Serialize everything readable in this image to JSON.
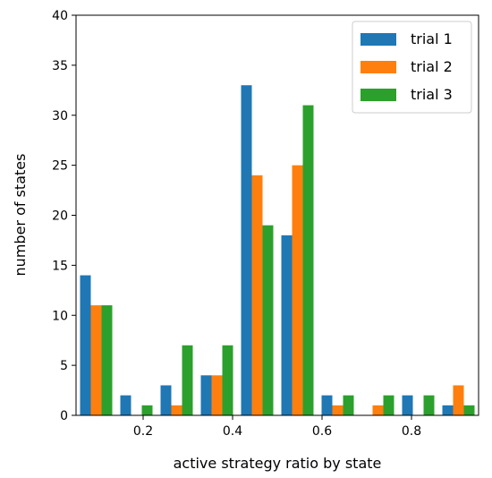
{
  "chart_data": {
    "type": "bar",
    "title": "",
    "xlabel": "active strategy ratio by state",
    "ylabel": "number of states",
    "xlim": [
      0.05,
      0.95
    ],
    "ylim": [
      0,
      40
    ],
    "xticks": [
      "0.2",
      "0.4",
      "0.6",
      "0.8"
    ],
    "xtick_values": [
      0.2,
      0.4,
      0.6,
      0.8
    ],
    "yticks": [
      "0",
      "5",
      "10",
      "15",
      "20",
      "25",
      "30",
      "35",
      "40"
    ],
    "ytick_values": [
      0,
      5,
      10,
      15,
      20,
      25,
      30,
      35,
      40
    ],
    "bins": [
      [
        0.05,
        0.14
      ],
      [
        0.14,
        0.23
      ],
      [
        0.23,
        0.32
      ],
      [
        0.32,
        0.41
      ],
      [
        0.41,
        0.5
      ],
      [
        0.5,
        0.59
      ],
      [
        0.59,
        0.68
      ],
      [
        0.68,
        0.77
      ],
      [
        0.77,
        0.86
      ],
      [
        0.86,
        0.95
      ]
    ],
    "legend_position": "top-right",
    "grid": false,
    "series": [
      {
        "name": "trial 1",
        "color": "#1f77b4",
        "values": [
          14,
          2,
          3,
          4,
          33,
          18,
          2,
          0,
          2,
          1
        ]
      },
      {
        "name": "trial 2",
        "color": "#ff7f0e",
        "values": [
          11,
          0,
          1,
          4,
          24,
          25,
          1,
          1,
          0,
          3
        ]
      },
      {
        "name": "trial 3",
        "color": "#2ca02c",
        "values": [
          11,
          1,
          7,
          7,
          19,
          31,
          2,
          2,
          2,
          1
        ]
      }
    ]
  }
}
